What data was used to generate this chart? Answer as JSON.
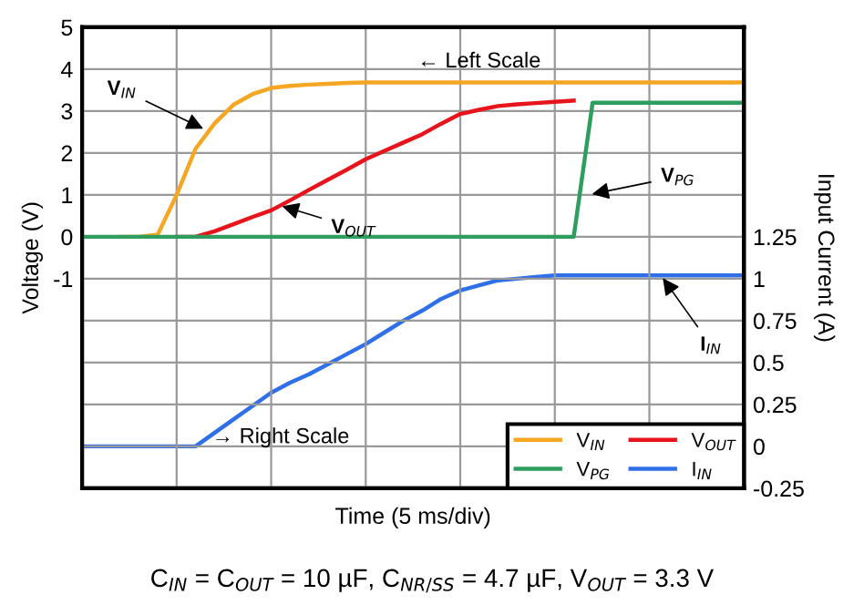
{
  "chart_data": {
    "type": "line",
    "xlabel": "Time (5 ms/div)",
    "ylabel": "Voltage (V)",
    "y2label": "Input Current (A)",
    "categories": [
      null,
      null,
      null,
      null,
      null,
      null,
      null,
      null,
      null,
      null,
      null,
      null,
      null,
      null,
      null,
      null,
      null,
      null,
      null,
      null,
      null,
      null,
      null,
      null,
      null,
      null,
      null,
      null,
      null,
      null,
      null,
      null,
      null,
      null,
      null,
      null
    ],
    "ylim": [
      -6,
      5
    ],
    "yticks": [
      {
        "value": -6,
        "label": null
      },
      {
        "value": -5,
        "label": null
      },
      {
        "value": -4,
        "label": null
      },
      {
        "value": -3,
        "label": null
      },
      {
        "value": -2,
        "label": null
      },
      -1,
      0,
      1,
      2,
      3,
      4,
      5
    ],
    "y2lim": [
      -0.25,
      2.5
    ],
    "y2ticks": [
      -0.25,
      0,
      0.25,
      0.5,
      0.75,
      1,
      1.25
    ],
    "grid": true,
    "legend": "bottom right",
    "marker": "none",
    "line_style": "solid",
    "series": [
      {
        "name": "V$_{IN}$",
        "color": "#f5a623",
        "values": [
          null,
          null,
          0,
          0,
          0.05,
          1.0,
          2.1,
          2.7,
          3.15,
          3.4,
          3.55,
          3.6,
          3.63,
          3.65,
          3.67,
          3.68,
          3.68,
          3.68,
          3.68,
          3.68,
          3.68,
          3.68,
          3.68,
          3.68,
          3.68,
          3.68,
          3.68,
          3.68,
          3.68,
          3.68,
          3.68,
          3.68,
          3.68,
          3.68,
          3.68,
          3.68
        ]
      },
      {
        "name": "V$_{OUT}$",
        "color": "#e8141b",
        "values": [
          null,
          null,
          null,
          null,
          null,
          0,
          0,
          0.13,
          0.3,
          0.47,
          0.63,
          0.87,
          1.12,
          1.36,
          1.6,
          1.85,
          2.05,
          2.25,
          2.45,
          2.7,
          2.93,
          3.03,
          3.12,
          3.16,
          3.19,
          3.22,
          3.25,
          null,
          null,
          null,
          null,
          null,
          null,
          null,
          null,
          null
        ]
      },
      {
        "name": "V$_{PG}$",
        "color": "#2e9e5e",
        "values": [
          0,
          0,
          0,
          0,
          0,
          0,
          0,
          0,
          0,
          0,
          0,
          0,
          0,
          0,
          0,
          0,
          0,
          0,
          0,
          0,
          0,
          0,
          0,
          0,
          0,
          0,
          0,
          3.2,
          3.2,
          3.2,
          3.2,
          3.2,
          3.2,
          3.2,
          3.2,
          3.2
        ]
      },
      {
        "name": "I$_{IN}$",
        "color": "#2f6fe8",
        "axis": "y2",
        "values": [
          0,
          0,
          0,
          0,
          0,
          0,
          0,
          0.08,
          0.16,
          0.24,
          0.32,
          0.38,
          0.43,
          0.49,
          0.55,
          0.61,
          0.68,
          0.75,
          0.81,
          0.88,
          0.93,
          0.96,
          0.99,
          1.0,
          1.01,
          1.02,
          1.02,
          1.02,
          1.02,
          1.02,
          1.02,
          1.02,
          1.02,
          1.02,
          1.02,
          1.02
        ]
      }
    ],
    "annotations": [
      "V$_{IN}$",
      "V$_{OUT}$",
      "V$_{PG}$",
      "I$_{IN}$",
      "← Left Scale",
      "→ Right Scale",
      "C$_{IN}$ = C$_{OUT}$ = 10 µF, C$_{NR/SS}$ = 4.7 µF, V$_{OUT}$ = 3.3 V"
    ]
  }
}
